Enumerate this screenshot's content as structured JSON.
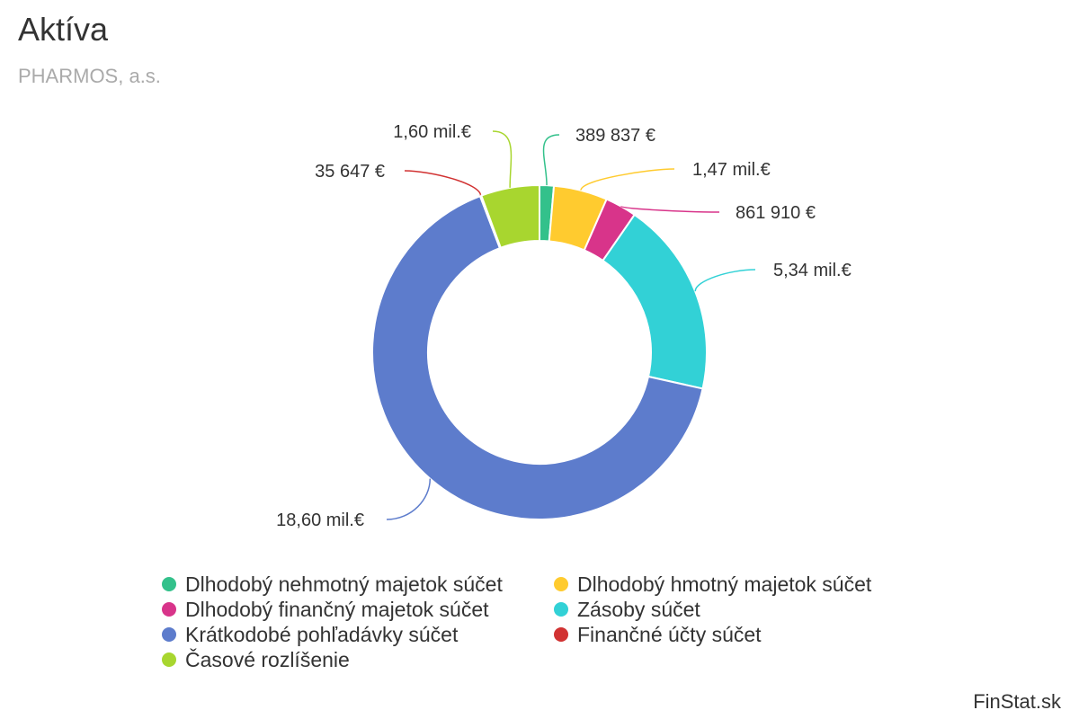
{
  "title": "Aktíva",
  "subtitle": "PHARMOS, a.s.",
  "credit": "FinStat.sk",
  "chart_data": {
    "type": "pie",
    "variant": "donut",
    "title": "Aktíva",
    "subtitle": "PHARMOS, a.s.",
    "legend_position": "bottom",
    "start_angle_deg": 0,
    "series": [
      {
        "name": "Dlhodobý nehmotný majetok súčet",
        "value": 389837,
        "label": "389 837 €",
        "color": "#33c18b"
      },
      {
        "name": "Dlhodobý hmotný majetok súčet",
        "value": 1470000,
        "label": "1,47 mil.€",
        "color": "#ffcb2f"
      },
      {
        "name": "Dlhodobý finančný majetok súčet",
        "value": 861910,
        "label": "861 910 €",
        "color": "#d8348a"
      },
      {
        "name": "Zásoby súčet",
        "value": 5340000,
        "label": "5,34 mil.€",
        "color": "#32d1d6"
      },
      {
        "name": "Krátkodobé pohľadávky súčet",
        "value": 18600000,
        "label": "18,60 mil.€",
        "color": "#5d7ccc"
      },
      {
        "name": "Finančné účty súčet",
        "value": 35647,
        "label": "35 647 €",
        "color": "#d13232"
      },
      {
        "name": "Časové rozlíšenie",
        "value": 1600000,
        "label": "1,60 mil.€",
        "color": "#a8d62f"
      }
    ]
  }
}
